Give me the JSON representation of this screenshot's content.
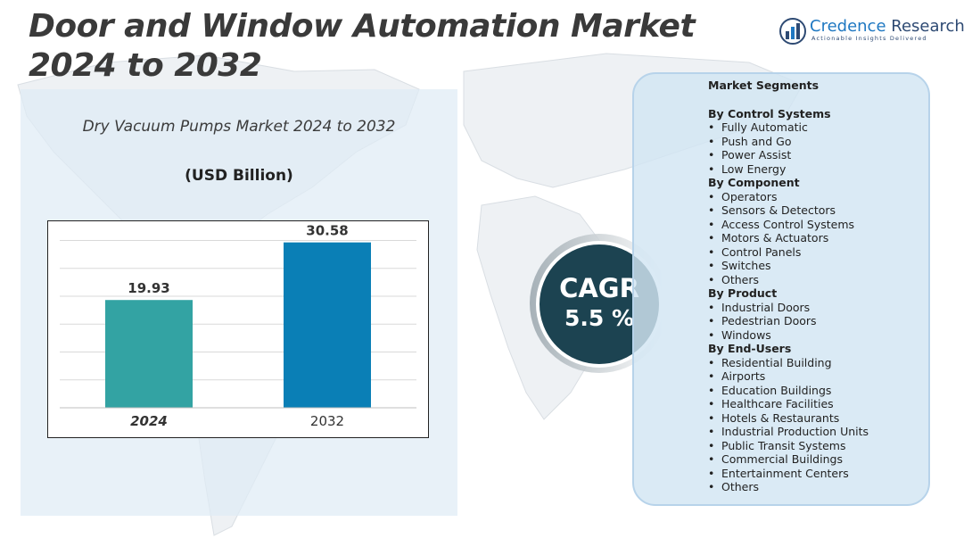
{
  "page": {
    "title": "Door and Window Automation Market 2024 to 2032"
  },
  "logo": {
    "name_part1": "Credence",
    "name_part2": " Research",
    "tagline": "Actionable Insights Delivered"
  },
  "chart_data": {
    "type": "bar",
    "title": "Dry Vacuum Pumps Market 2024 to 2032",
    "unit_label": "(USD Billion)",
    "categories": [
      "2024",
      "2032"
    ],
    "values": [
      19.93,
      30.58
    ],
    "value_labels": [
      "19.93",
      "30.58"
    ],
    "colors": [
      "#33a3a3",
      "#0a7fb6"
    ],
    "ylim": [
      0,
      33
    ],
    "grid": true,
    "xlabel": "",
    "ylabel": ""
  },
  "cagr": {
    "label": "CAGR",
    "value": "5.5 %"
  },
  "segments": {
    "heading": "Market Segments",
    "groups": [
      {
        "title": "By Control Systems",
        "items": [
          "Fully Automatic",
          "Push and Go",
          "Power Assist",
          "Low Energy"
        ]
      },
      {
        "title": "By Component",
        "items": [
          "Operators",
          "Sensors & Detectors",
          "Access Control Systems",
          "Motors & Actuators",
          "Control Panels",
          "Switches",
          "Others"
        ]
      },
      {
        "title": "By Product",
        "items": [
          "Industrial Doors",
          "Pedestrian Doors",
          "Windows"
        ]
      },
      {
        "title": "By End-Users",
        "items": [
          "Residential Building",
          "Airports",
          "Education Buildings",
          "Healthcare Facilities",
          "Hotels & Restaurants",
          "Industrial Production Units",
          "Public Transit Systems",
          "Commercial Buildings",
          "Entertainment Centers",
          "Others"
        ]
      }
    ]
  },
  "colors": {
    "cagr_circle": "#1c4351",
    "segments_card": "#d2e5f3",
    "chart_panel": "#dfecf5"
  }
}
